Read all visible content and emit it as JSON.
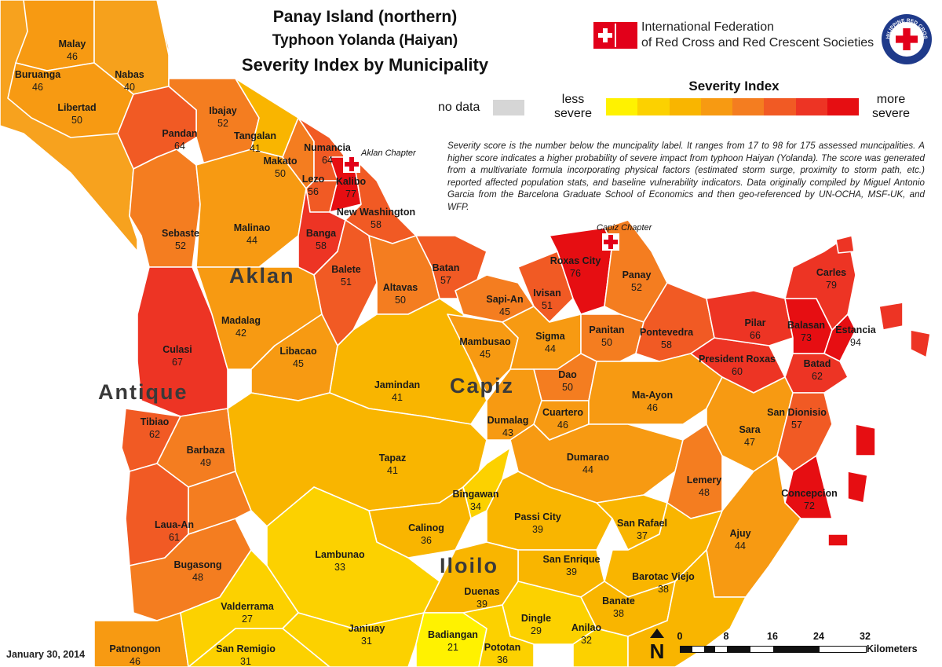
{
  "title": {
    "line1": "Panay Island (northern)",
    "line2": "Typhoon Yolanda (Haiyan)",
    "line3": "Severity Index by Municipality"
  },
  "organization": {
    "ifrc_line1": "International Federation",
    "ifrc_line2": "of Red Cross and Red Crescent Societies",
    "ifrc_logo": "red-cross-red-crescent-emblem",
    "prc_logo": "philippine-red-cross-seal",
    "prc_logo_text": "PHILIPPINE RED CROSS"
  },
  "legend": {
    "title": "Severity Index",
    "less_label": "less severe",
    "more_label": "more severe",
    "no_data_label": "no data",
    "no_data_color": "#d6d6d6",
    "scale_colors": [
      "#fff200",
      "#fcd100",
      "#f9b500",
      "#f79a12",
      "#f47d20",
      "#f15a24",
      "#ed3424",
      "#e60e12"
    ]
  },
  "description": "Severity score is the number below the muncipality label. It ranges from 17 to 98 for 175 assessed muncipalities. A higher score indicates a higher probability of severe impact from typhoon Haiyan (Yolanda). The score was generated from a multivariate formula incorporating physical factors (estimated storm surge, proximity to storm path, etc.) reported affected population stats, and baseline vulnerability indicators. Data originally compiled by Miguel Antonio Garcia from the Barcelona Graduate School of Economics and then geo-referenced by UN-OCHA, MSF-UK, and WFP.",
  "chapters": [
    {
      "name": "Aklan Chapter",
      "icon": "red-cross-icon"
    },
    {
      "name": "Capiz Chapter",
      "icon": "red-cross-icon"
    }
  ],
  "provinces": [
    "Aklan",
    "Antique",
    "Capiz",
    "Iloilo"
  ],
  "municipalities": [
    {
      "name": "Malay",
      "score": "46"
    },
    {
      "name": "Buruanga",
      "score": "46"
    },
    {
      "name": "Nabas",
      "score": "40"
    },
    {
      "name": "Libertad",
      "score": "50"
    },
    {
      "name": "Ibajay",
      "score": "52"
    },
    {
      "name": "Pandan",
      "score": "64"
    },
    {
      "name": "Tangalan",
      "score": "41"
    },
    {
      "name": "Numancia",
      "score": "64"
    },
    {
      "name": "Makato",
      "score": "50"
    },
    {
      "name": "Lezo",
      "score": "56"
    },
    {
      "name": "Kalibo",
      "score": "77"
    },
    {
      "name": "New Washington",
      "score": "58"
    },
    {
      "name": "Sebaste",
      "score": "52"
    },
    {
      "name": "Malinao",
      "score": "44"
    },
    {
      "name": "Banga",
      "score": "58"
    },
    {
      "name": "Balete",
      "score": "51"
    },
    {
      "name": "Batan",
      "score": "57"
    },
    {
      "name": "Altavas",
      "score": "50"
    },
    {
      "name": "Roxas City",
      "score": "76"
    },
    {
      "name": "Panay",
      "score": "52"
    },
    {
      "name": "Sapi-An",
      "score": "45"
    },
    {
      "name": "Ivisan",
      "score": "51"
    },
    {
      "name": "Carles",
      "score": "79"
    },
    {
      "name": "Madalag",
      "score": "42"
    },
    {
      "name": "Libacao",
      "score": "45"
    },
    {
      "name": "Culasi",
      "score": "67"
    },
    {
      "name": "Mambusao",
      "score": "45"
    },
    {
      "name": "Sigma",
      "score": "44"
    },
    {
      "name": "Panitan",
      "score": "50"
    },
    {
      "name": "Pontevedra",
      "score": "58"
    },
    {
      "name": "Pilar",
      "score": "66"
    },
    {
      "name": "Balasan",
      "score": "73"
    },
    {
      "name": "Estancia",
      "score": "94"
    },
    {
      "name": "President Roxas",
      "score": "60"
    },
    {
      "name": "Batad",
      "score": "62"
    },
    {
      "name": "Jamindan",
      "score": "41"
    },
    {
      "name": "Dao",
      "score": "50"
    },
    {
      "name": "Ma-Ayon",
      "score": "46"
    },
    {
      "name": "Tibiao",
      "score": "62"
    },
    {
      "name": "Dumalag",
      "score": "43"
    },
    {
      "name": "Cuartero",
      "score": "46"
    },
    {
      "name": "San Dionisio",
      "score": "57"
    },
    {
      "name": "Sara",
      "score": "47"
    },
    {
      "name": "Barbaza",
      "score": "49"
    },
    {
      "name": "Tapaz",
      "score": "41"
    },
    {
      "name": "Dumarao",
      "score": "44"
    },
    {
      "name": "Lemery",
      "score": "48"
    },
    {
      "name": "Bingawan",
      "score": "34"
    },
    {
      "name": "Concepcion",
      "score": "72"
    },
    {
      "name": "Passi City",
      "score": "39"
    },
    {
      "name": "Calinog",
      "score": "36"
    },
    {
      "name": "Laua-An",
      "score": "61"
    },
    {
      "name": "San Rafael",
      "score": "37"
    },
    {
      "name": "Ajuy",
      "score": "44"
    },
    {
      "name": "Lambunao",
      "score": "33"
    },
    {
      "name": "San Enrique",
      "score": "39"
    },
    {
      "name": "Barotac Viejo",
      "score": "38"
    },
    {
      "name": "Bugasong",
      "score": "48"
    },
    {
      "name": "Duenas",
      "score": "39"
    },
    {
      "name": "Banate",
      "score": "38"
    },
    {
      "name": "Valderrama",
      "score": "27"
    },
    {
      "name": "Dingle",
      "score": "29"
    },
    {
      "name": "Anilao",
      "score": "32"
    },
    {
      "name": "Janiuay",
      "score": "31"
    },
    {
      "name": "Badiangan",
      "score": "21"
    },
    {
      "name": "Patnongon",
      "score": "46"
    },
    {
      "name": "San Remigio",
      "score": "31"
    },
    {
      "name": "Pototan",
      "score": "36"
    }
  ],
  "date": "January 30, 2014",
  "north_arrow": {
    "label": "N",
    "icon": "north-arrow-icon"
  },
  "scale": {
    "ticks": [
      "0",
      "8",
      "16",
      "24",
      "32"
    ],
    "unit": "Kilometers"
  }
}
